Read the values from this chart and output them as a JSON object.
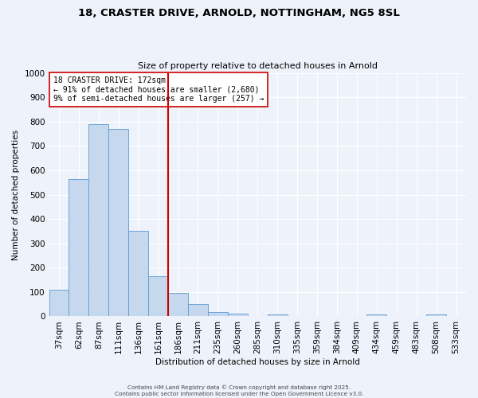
{
  "title_line1": "18, CRASTER DRIVE, ARNOLD, NOTTINGHAM, NG5 8SL",
  "title_line2": "Size of property relative to detached houses in Arnold",
  "xlabel": "Distribution of detached houses by size in Arnold",
  "ylabel": "Number of detached properties",
  "categories": [
    "37sqm",
    "62sqm",
    "87sqm",
    "111sqm",
    "136sqm",
    "161sqm",
    "186sqm",
    "211sqm",
    "235sqm",
    "260sqm",
    "285sqm",
    "310sqm",
    "335sqm",
    "359sqm",
    "384sqm",
    "409sqm",
    "434sqm",
    "459sqm",
    "483sqm",
    "508sqm",
    "533sqm"
  ],
  "values": [
    110,
    565,
    790,
    770,
    350,
    165,
    95,
    50,
    18,
    12,
    0,
    8,
    0,
    0,
    0,
    0,
    7,
    0,
    0,
    7,
    0
  ],
  "bar_color": "#c5d8ee",
  "bar_edge_color": "#5b9bd5",
  "vline_x": 5.5,
  "vline_color": "#cc0000",
  "annotation_text": "18 CRASTER DRIVE: 172sqm\n← 91% of detached houses are smaller (2,680)\n9% of semi-detached houses are larger (257) →",
  "annotation_box_color": "#ffffff",
  "annotation_box_edge": "#cc0000",
  "ylim": [
    0,
    1000
  ],
  "yticks": [
    0,
    100,
    200,
    300,
    400,
    500,
    600,
    700,
    800,
    900,
    1000
  ],
  "background_color": "#eef2fa",
  "grid_color": "#ffffff",
  "footer_text": "Contains HM Land Registry data © Crown copyright and database right 2025.\nContains public sector information licensed under the Open Government Licence v3.0."
}
